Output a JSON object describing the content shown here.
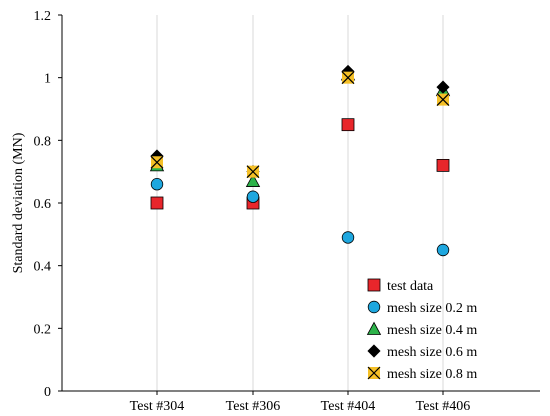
{
  "chart_data": {
    "type": "scatter",
    "categories": [
      "Test #304",
      "Test #306",
      "Test #404",
      "Test #406"
    ],
    "ylabel": "Standard deviation (MN)",
    "xlabel": "",
    "ylim": [
      0,
      1.2
    ],
    "yticks": [
      0,
      0.2,
      0.4,
      0.6,
      0.8,
      1,
      1.2
    ],
    "ytick_labels": [
      "0",
      "0.2",
      "0.4",
      "0.6",
      "0.8",
      "1",
      "1.2"
    ],
    "grid": "vertical",
    "legend_position": "bottom-right",
    "series": [
      {
        "name": "test data",
        "marker": "square",
        "color": "#e8262b",
        "values": [
          0.6,
          0.6,
          0.85,
          0.72
        ]
      },
      {
        "name": "mesh size 0.2 m",
        "marker": "circle",
        "color": "#1ea7df",
        "values": [
          0.66,
          0.62,
          0.49,
          0.45
        ]
      },
      {
        "name": "mesh size 0.4 m",
        "marker": "triangle",
        "color": "#2db34a",
        "values": [
          0.72,
          0.67,
          1.01,
          0.96
        ]
      },
      {
        "name": "mesh size 0.6 m",
        "marker": "diamond",
        "color": "#000000",
        "values": [
          0.75,
          0.7,
          1.02,
          0.97
        ]
      },
      {
        "name": "mesh size 0.8 m",
        "marker": "x-square",
        "color": "#f5c027",
        "values": [
          0.73,
          0.7,
          1.0,
          0.93
        ]
      }
    ]
  }
}
